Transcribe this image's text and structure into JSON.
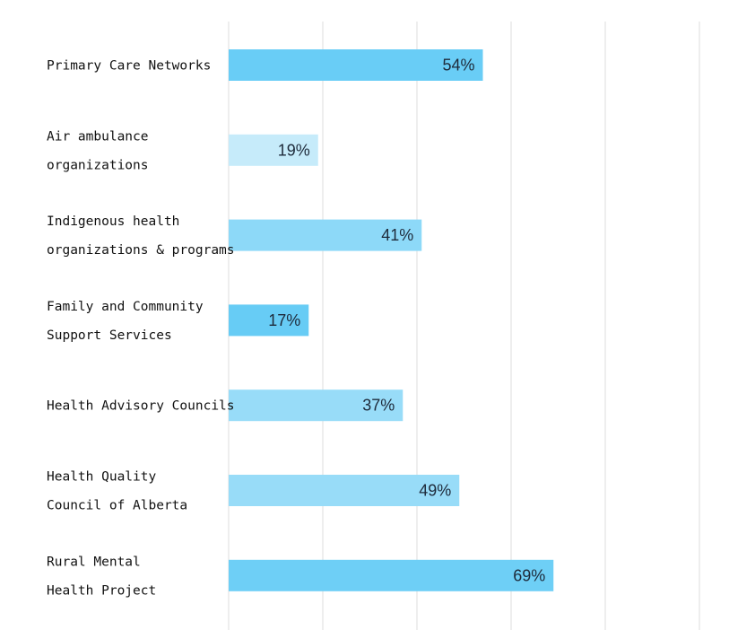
{
  "chart_data": {
    "type": "bar",
    "orientation": "horizontal",
    "categories": [
      [
        "Primary Care Networks"
      ],
      [
        "Air ambulance",
        "organizations"
      ],
      [
        "Indigenous health",
        "organizations & programs"
      ],
      [
        "Family and Community",
        "Support Services"
      ],
      [
        "Health Advisory Councils"
      ],
      [
        "Health Quality",
        "Council of Alberta"
      ],
      [
        "Rural Mental",
        "Health Project"
      ]
    ],
    "values": [
      54,
      19,
      41,
      17,
      37,
      49,
      69
    ],
    "value_labels": [
      "54%",
      "19%",
      "41%",
      "17%",
      "37%",
      "49%",
      "69%"
    ],
    "bar_colors": [
      "#69cdf6",
      "#c6ebfa",
      "#8dd9f8",
      "#67ccf5",
      "#98dcf8",
      "#98dcf8",
      "#6ecff6"
    ],
    "xlim": [
      0,
      100
    ],
    "grid": true,
    "title": "",
    "xlabel": "",
    "ylabel": ""
  }
}
